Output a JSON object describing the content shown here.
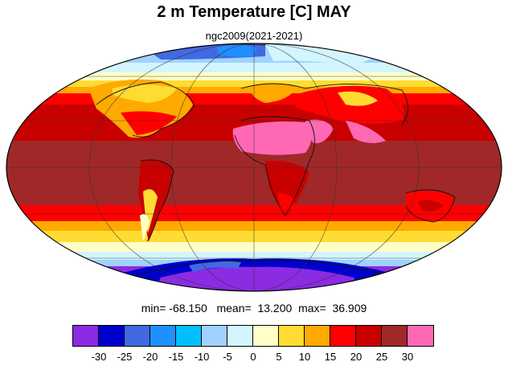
{
  "title": "2 m Temperature [C] MAY",
  "subtitle": "ngc2009(2021-2021)",
  "stats": {
    "min_label": "min=",
    "min": "-68.150",
    "mean_label": "mean=",
    "mean": "13.200",
    "max_label": "max=",
    "max": "36.909"
  },
  "colorbar": {
    "colors": [
      "#8b2be2",
      "#0000cd",
      "#4169e1",
      "#1e90ff",
      "#00bfff",
      "#a0d2ff",
      "#d2f5ff",
      "#ffffc8",
      "#ffdc32",
      "#ffaa00",
      "#ff0000",
      "#c80000",
      "#a02828",
      "#ff69b4"
    ],
    "labels": [
      "-30",
      "-25",
      "-20",
      "-15",
      "-10",
      "-5",
      "0",
      "5",
      "10",
      "15",
      "20",
      "25",
      "30"
    ]
  },
  "map": {
    "projection": "mollweide",
    "field": "2 m temperature"
  }
}
